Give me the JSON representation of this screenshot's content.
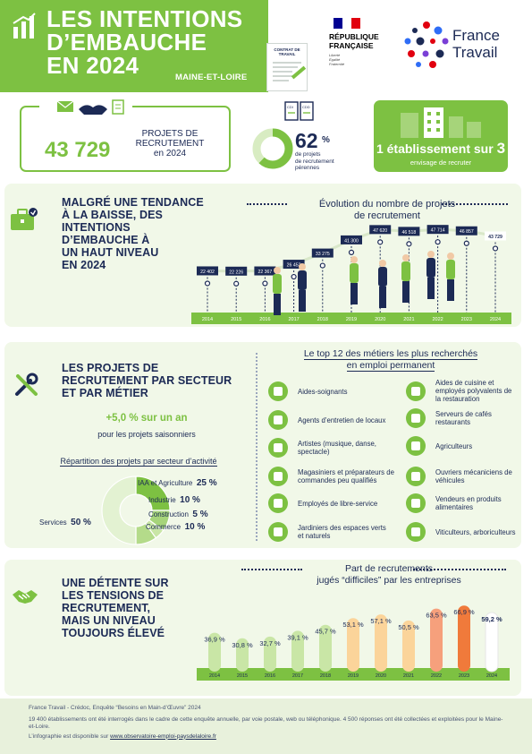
{
  "header": {
    "title_lines": [
      "LES INTENTIONS",
      "D’EMBAUCHE",
      "EN 2024"
    ],
    "region": "MAINE-ET-LOIRE",
    "contract_label": "CONTRAT DE TRAVAIL",
    "republic_lines": [
      "RÉPUBLIQUE",
      "FRANÇAISE"
    ],
    "republic_motto": [
      "Liberté",
      "Égalité",
      "Fraternité"
    ],
    "agency_lines": [
      "France",
      "Travail"
    ],
    "colors": {
      "green": "#7dc142",
      "navy": "#1c2a55",
      "orange": "#f07a3b"
    }
  },
  "kpis": {
    "projects_number": "43 729",
    "projects_label_lines": [
      "PROJETS DE",
      "RECRUTEMENT",
      "en 2024"
    ],
    "perennial_number": "62",
    "perennial_unit": "%",
    "perennial_label_lines": [
      "de projets",
      "de recrutement",
      "pérennes"
    ],
    "perennial_ratio": 0.62,
    "establishments_text_a": "1 établissement sur ",
    "establishments_text_b": "3",
    "establishments_sub": "envisage de recruter"
  },
  "section1": {
    "title_lines": [
      "MALGRÉ UNE TENDANCE",
      "À LA BAISSE, DES",
      "INTENTIONS",
      "D’EMBAUCHE À",
      "UN HAUT NIVEAU",
      "EN 2024"
    ],
    "icon": "briefcase-icon"
  },
  "section2": {
    "title_lines": [
      "LES PROJETS DE",
      "RECRUTEMENT PAR SECTEUR",
      "ET PAR MÉTIER"
    ],
    "icon": "tools-icon",
    "seasonal_pct": "+5,0 % sur un an",
    "seasonal_label": "pour les projets saisonniers",
    "distribution_title": "Répartition des projets par secteur d’activité",
    "sectors": [
      {
        "label": "IAA et Agriculture",
        "value": "25 %",
        "share": 25
      },
      {
        "label": "Industrie",
        "value": "10 %",
        "share": 10
      },
      {
        "label": "Construction",
        "value": "5 %",
        "share": 5
      },
      {
        "label": "Commerce",
        "value": "10 %",
        "share": 10
      },
      {
        "label": "Services",
        "value": "50 %",
        "share": 50
      }
    ],
    "top12_title_lines": [
      "Le top 12 des métiers les plus recherchés",
      "en emploi permanent"
    ],
    "jobs": [
      {
        "label": "Aides-soignants",
        "icon": "stethoscope-icon"
      },
      {
        "label": "Aides de cuisine  et employés polyvalents de la restauration",
        "icon": "chef-hat-icon"
      },
      {
        "label": "Agents d’entretien de locaux",
        "icon": "cleaning-cart-icon"
      },
      {
        "label": "Serveurs de cafés restaurants",
        "icon": "cloche-icon"
      },
      {
        "label": "Artistes (musique, danse, spectacle)",
        "icon": "theater-icon"
      },
      {
        "label": "Agriculteurs",
        "icon": "tractor-icon"
      },
      {
        "label": "Magasiniers et préparateurs de commandes peu qualifiés",
        "icon": "warehouse-icon"
      },
      {
        "label": "Ouvriers mécaniciens de véhicules",
        "icon": "mechanic-icon"
      },
      {
        "label": "Employés de libre-service",
        "icon": "shopping-cart-icon"
      },
      {
        "label": "Vendeurs en produits alimentaires",
        "icon": "food-stall-icon"
      },
      {
        "label": "Jardiniers des espaces verts et naturels",
        "icon": "shears-icon"
      },
      {
        "label": "Viticulteurs, arboriculteurs",
        "icon": "grapes-icon"
      }
    ]
  },
  "section3": {
    "title_lines": [
      "UNE DÉTENTE SUR",
      "LES TENSIONS DE",
      "RECRUTEMENT,",
      "MAIS UN NIVEAU",
      "TOUJOURS ÉLEVÉ"
    ],
    "icon": "handshake-icon"
  },
  "chart_data": [
    {
      "type": "line",
      "title": "Évolution du nombre de projets de recrutement",
      "title_lines": [
        "Évolution du nombre de projets",
        "de recrutement"
      ],
      "categories": [
        "2014",
        "2015",
        "2016",
        "2017",
        "2018",
        "2019",
        "2020",
        "2021",
        "2022",
        "2023",
        "2024"
      ],
      "values": [
        22402,
        22226,
        22367,
        26452,
        33275,
        41300,
        47620,
        46518,
        47714,
        46857,
        43729
      ],
      "labels": [
        "22 402",
        "22 226",
        "22 367",
        "26 452",
        "33 275",
        "41 300",
        "47 620",
        "46 518",
        "47 714",
        "46 857",
        "43 729"
      ],
      "ylim": [
        15000,
        50000
      ]
    },
    {
      "type": "bar",
      "title": "Part de recrutements jugés “difficiles” par les entreprises",
      "title_lines": [
        "Part de recrutements",
        "jugés “difficiles” par les entreprises"
      ],
      "categories": [
        "2014",
        "2015",
        "2016",
        "2017",
        "2018",
        "2019",
        "2020",
        "2021",
        "2022",
        "2023",
        "2024"
      ],
      "values": [
        36.9,
        30.8,
        32.7,
        39.1,
        45.7,
        53.1,
        57.1,
        50.5,
        63.5,
        66.9,
        59.2
      ],
      "labels": [
        "36,9 %",
        "30,8 %",
        "32,7 %",
        "39,1 %",
        "45,7 %",
        "53,1 %",
        "57,1 %",
        "50,5 %",
        "63,5 %",
        "66,9 %",
        "59,2 %"
      ],
      "ylim": [
        0,
        75
      ],
      "colors": [
        "#c9e6a6",
        "#c9e6a6",
        "#c9e6a6",
        "#c9e6a6",
        "#c9e6a6",
        "#fbd49a",
        "#fbd49a",
        "#fbd49a",
        "#f6a07c",
        "#f07a3b",
        "#ffffff"
      ]
    }
  ],
  "footer": {
    "source": "France Travail - Crédoc, Enquête “Besoins en Main-d’Œuvre” 2024",
    "method": "19 400 établissements ont été interrogés dans le cadre de cette enquête annuelle, par voie postale, web ou téléphonique. 4 500 réponses ont été collectées et exploitées pour le Maine-et-Loire.",
    "available_prefix": "L’infographie est disponible sur ",
    "link": "www.observatoire-emploi-paysdelaloire.fr"
  }
}
